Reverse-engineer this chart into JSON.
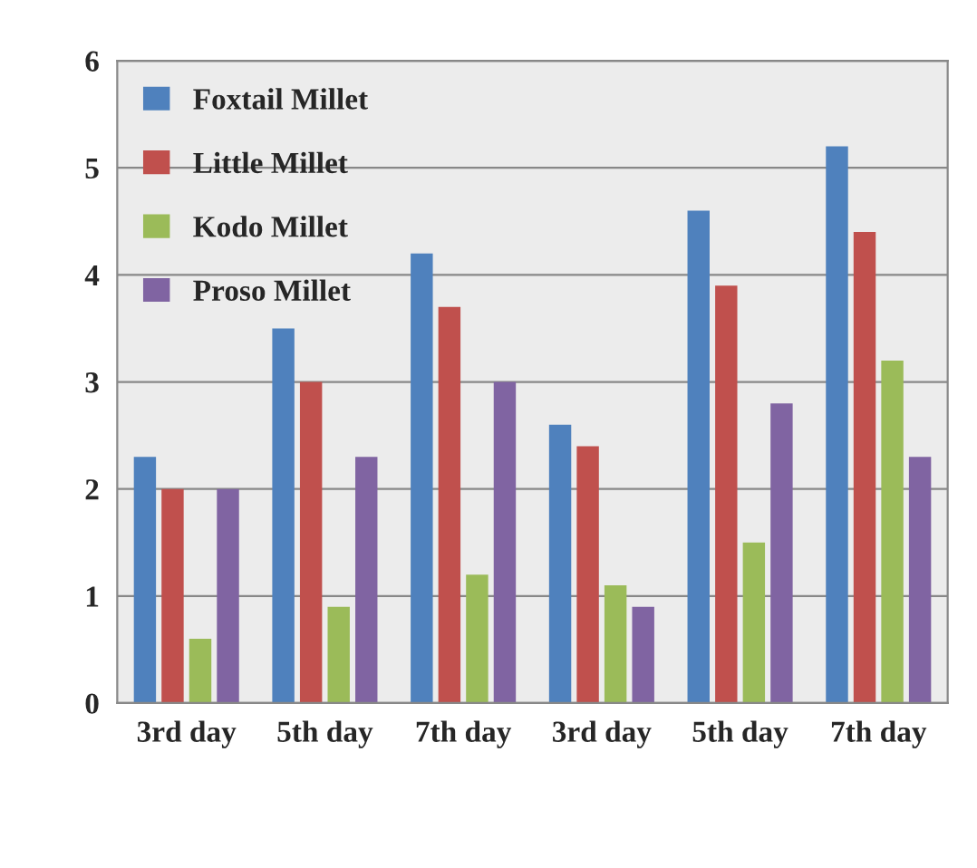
{
  "chart_data": {
    "type": "bar",
    "categories": [
      "3rd day",
      "5th day",
      "7th day",
      "3rd day",
      "5th day",
      "7th day"
    ],
    "series": [
      {
        "name": "Foxtail Millet",
        "color": "#4f81bd",
        "values": [
          2.3,
          3.5,
          4.2,
          2.6,
          4.6,
          5.2
        ]
      },
      {
        "name": "Little Millet",
        "color": "#c0504d",
        "values": [
          2.0,
          3.0,
          3.7,
          2.4,
          3.9,
          4.4
        ]
      },
      {
        "name": "Kodo Millet",
        "color": "#9bbb59",
        "values": [
          0.6,
          0.9,
          1.2,
          1.1,
          1.5,
          3.2
        ]
      },
      {
        "name": "Proso Millet",
        "color": "#8064a2",
        "values": [
          2.0,
          2.3,
          3.0,
          0.9,
          2.8,
          2.3
        ]
      }
    ],
    "ylim": [
      0,
      6
    ],
    "yticks": [
      0,
      1,
      2,
      3,
      4,
      5,
      6
    ],
    "grid": "y",
    "legend": "top left"
  }
}
